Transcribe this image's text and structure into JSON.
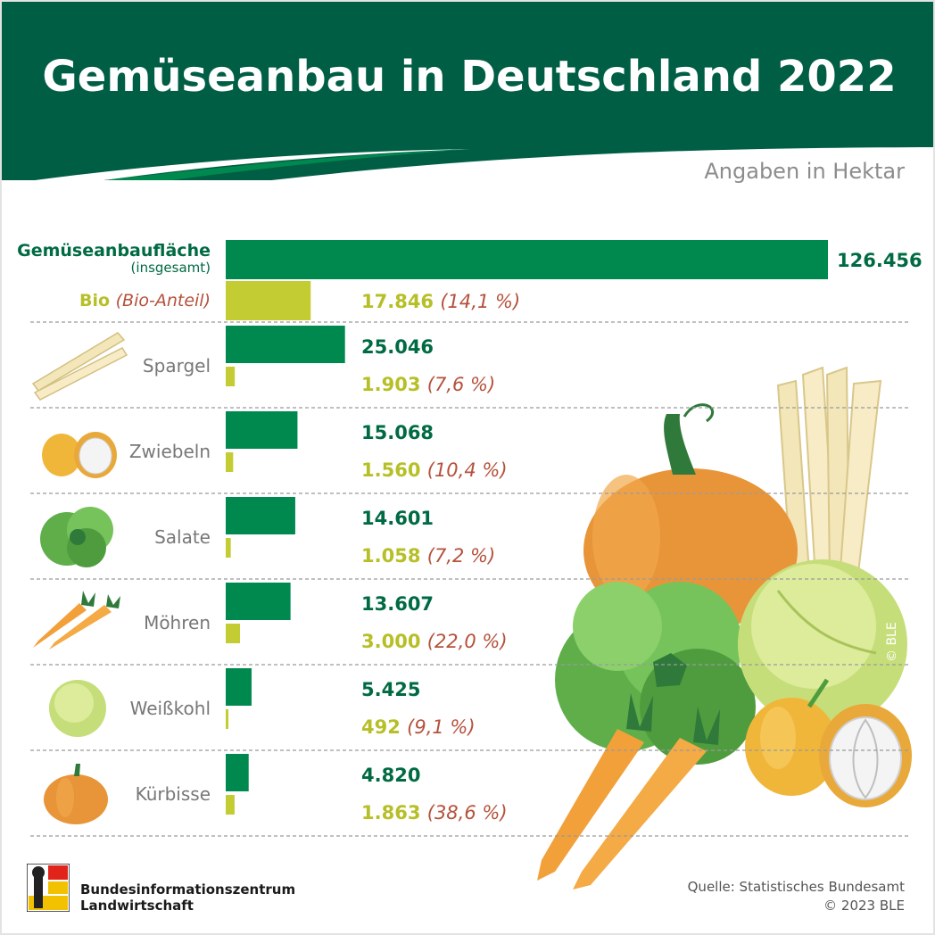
{
  "header": {
    "title": "Gemüseanbau in Deutschland 2022"
  },
  "unit_note": "Angaben in Hektar",
  "colors": {
    "header_green": "#005e45",
    "bar_green": "#00894f",
    "bar_lime": "#c4cc33",
    "value_green": "#006b43",
    "value_lime": "#b7bf27",
    "share_red": "#b5513b",
    "label_gray": "#777777",
    "divider": "#9a9a9a"
  },
  "chart_data": {
    "type": "bar",
    "title": "Gemüseanbau in Deutschland 2022",
    "unit": "Angaben in Hektar",
    "total": {
      "label_line1": "Gemüseanbaufläche",
      "label_line2": "(insgesamt)",
      "value": 126456,
      "value_label": "126.456",
      "bio_label": "Bio",
      "bio_label_suffix": "(Bio-Anteil)",
      "bio_value": 17846,
      "bio_value_label": "17.846",
      "bio_share": "(14,1 %)"
    },
    "categories": [
      {
        "name": "Spargel",
        "icon": "asparagus-icon",
        "total": 25046,
        "total_label": "25.046",
        "bio": 1903,
        "bio_label": "1.903",
        "share": "(7,6 %)"
      },
      {
        "name": "Zwiebeln",
        "icon": "onion-icon",
        "total": 15068,
        "total_label": "15.068",
        "bio": 1560,
        "bio_label": "1.560",
        "share": "(10,4 %)"
      },
      {
        "name": "Salate",
        "icon": "lettuce-icon",
        "total": 14601,
        "total_label": "14.601",
        "bio": 1058,
        "bio_label": "1.058",
        "share": "(7,2 %)"
      },
      {
        "name": "Möhren",
        "icon": "carrot-icon",
        "total": 13607,
        "total_label": "13.607",
        "bio": 3000,
        "bio_label": "3.000",
        "share": "(22,0 %)"
      },
      {
        "name": "Weißkohl",
        "icon": "cabbage-icon",
        "total": 5425,
        "total_label": "5.425",
        "bio": 492,
        "bio_label": "492",
        "share": "(9,1 %)"
      },
      {
        "name": "Kürbisse",
        "icon": "pumpkin-icon",
        "total": 4820,
        "total_label": "4.820",
        "bio": 1863,
        "bio_label": "1.863",
        "share": "(38,6 %)"
      }
    ],
    "series": [
      {
        "name": "Gemüseanbaufläche",
        "color": "#00894f"
      },
      {
        "name": "Bio",
        "color": "#c4cc33"
      }
    ]
  },
  "footer": {
    "org_line1": "Bundesinformationszentrum",
    "org_line2": "Landwirtschaft",
    "source": "Quelle: Statistisches Bundesamt",
    "copyright": "© 2023 BLE",
    "image_copyright": "© BLE"
  }
}
